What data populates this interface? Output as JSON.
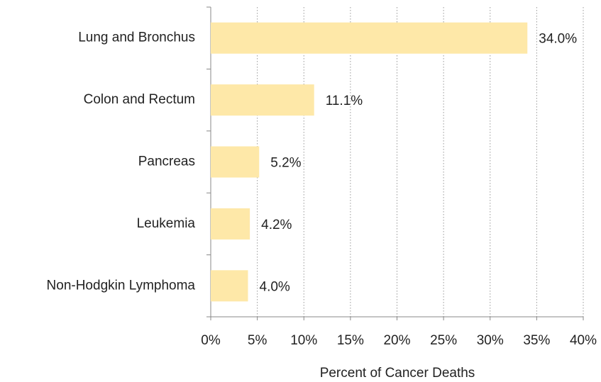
{
  "chart_data": {
    "type": "bar",
    "orientation": "horizontal",
    "x_label": "Percent of Cancer Deaths",
    "categories": [
      "Lung and Bronchus",
      "Colon and Rectum",
      "Pancreas",
      "Leukemia",
      "Non-Hodgkin Lymphoma"
    ],
    "values": [
      34.0,
      11.1,
      5.2,
      4.2,
      4.0
    ],
    "value_labels": [
      "34.0%",
      "11.1%",
      "5.2%",
      "4.2%",
      "4.0%"
    ],
    "color": "#fee8a8",
    "xlim": [
      0,
      40
    ],
    "xticks": [
      {
        "value": 0,
        "label": "0%"
      },
      {
        "value": 5,
        "label": "5%"
      },
      {
        "value": 10,
        "label": "10%"
      },
      {
        "value": 15,
        "label": "15%"
      },
      {
        "value": 20,
        "label": "20%"
      },
      {
        "value": 25,
        "label": "25%"
      },
      {
        "value": 30,
        "label": "30%"
      },
      {
        "value": 35,
        "label": "35%"
      },
      {
        "value": 40,
        "label": "40%"
      }
    ],
    "grid": true
  }
}
